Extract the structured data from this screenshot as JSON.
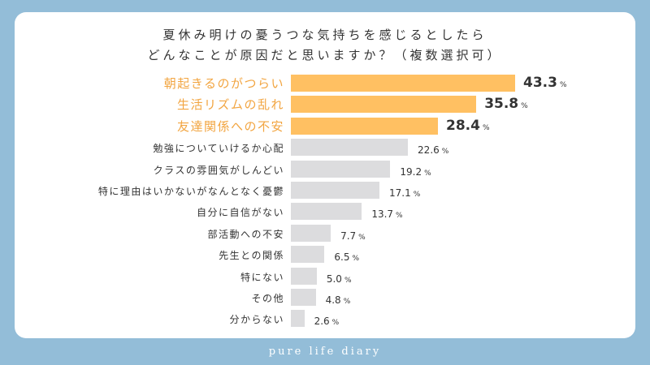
{
  "chart_data": {
    "type": "bar",
    "orientation": "horizontal",
    "title_lines": [
      "夏休み明けの憂うつな気持ちを感じるとしたら",
      "どんなことが原因だと思いますか？（複数選択可）"
    ],
    "categories": [
      "朝起きるのがつらい",
      "生活リズムの乱れ",
      "友達関係への不安",
      "勉強についていけるか心配",
      "クラスの雰囲気がしんどい",
      "特に理由はいかないがなんとなく憂鬱",
      "自分に自信がない",
      "部活動への不安",
      "先生との関係",
      "特にない",
      "その他",
      "分からない"
    ],
    "values": [
      43.3,
      35.8,
      28.4,
      22.6,
      19.2,
      17.1,
      13.7,
      7.7,
      6.5,
      5.0,
      4.8,
      2.6
    ],
    "value_labels": [
      "43.3",
      "35.8",
      "28.4",
      "22.6",
      "19.2",
      "17.1",
      "13.7",
      "7.7",
      "6.5",
      "5.0",
      "4.8",
      "2.6"
    ],
    "unit": "%",
    "highlight_count": 3,
    "colors": {
      "highlight_bar": "#ffc062",
      "highlight_text": "#f2a541",
      "bar": "#dcdcde",
      "text": "#333333",
      "background": "#93bdd8"
    },
    "grid": false
  },
  "footer": "pure life diary"
}
